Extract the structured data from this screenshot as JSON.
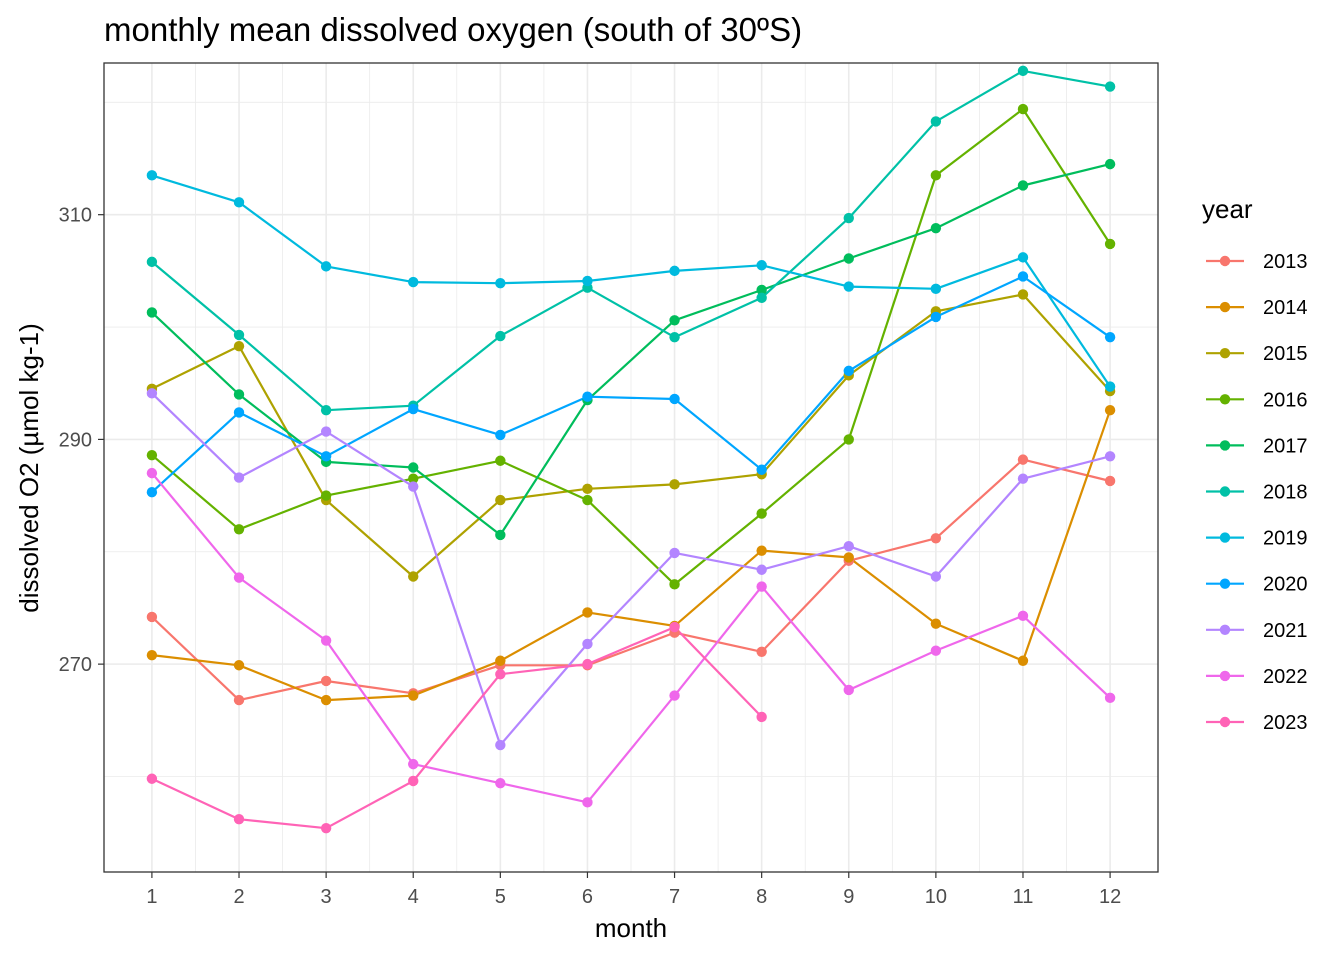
{
  "chart_data": {
    "type": "line",
    "title": "monthly mean dissolved oxygen (south of 30ºS)",
    "xlabel": "month",
    "ylabel": "dissolved O2 (µmol kg-1)",
    "legend_title": "year",
    "legend_position": "right",
    "x": [
      1,
      2,
      3,
      4,
      5,
      6,
      7,
      8,
      9,
      10,
      11,
      12
    ],
    "x_ticks": [
      "1",
      "2",
      "3",
      "4",
      "5",
      "6",
      "7",
      "8",
      "9",
      "10",
      "11",
      "12"
    ],
    "y_ticks": [
      "270",
      "290",
      "310"
    ],
    "xlim": [
      0.45,
      12.55
    ],
    "ylim": [
      251.5,
      323.5
    ],
    "series": [
      {
        "name": "2013",
        "color": "#F8766D",
        "values": [
          274.2,
          266.8,
          268.5,
          267.4,
          269.9,
          269.9,
          272.8,
          271.1,
          279.2,
          281.2,
          288.2,
          286.3
        ]
      },
      {
        "name": "2014",
        "color": "#DB8E00",
        "values": [
          270.8,
          269.9,
          266.8,
          267.2,
          270.3,
          274.6,
          273.4,
          280.1,
          279.5,
          273.6,
          270.3,
          292.6
        ]
      },
      {
        "name": "2015",
        "color": "#AEA200",
        "values": [
          294.5,
          298.3,
          284.6,
          277.8,
          284.6,
          285.6,
          286.0,
          286.9,
          295.7,
          301.4,
          302.9,
          294.3
        ]
      },
      {
        "name": "2016",
        "color": "#64B200",
        "values": [
          288.6,
          282.0,
          285.0,
          286.5,
          288.1,
          284.6,
          277.1,
          283.4,
          290.0,
          313.5,
          319.4,
          307.4
        ]
      },
      {
        "name": "2017",
        "color": "#00BD5C",
        "values": [
          301.3,
          294.0,
          288.0,
          287.5,
          281.5,
          293.5,
          300.6,
          303.3,
          306.1,
          308.8,
          312.6,
          314.5
        ]
      },
      {
        "name": "2018",
        "color": "#00C1A7",
        "values": [
          305.8,
          299.3,
          292.6,
          293.0,
          299.2,
          303.5,
          299.1,
          302.6,
          309.7,
          318.3,
          322.8,
          321.4
        ]
      },
      {
        "name": "2019",
        "color": "#00BADE",
        "values": [
          313.5,
          311.1,
          305.4,
          304.0,
          303.9,
          304.1,
          305.0,
          305.5,
          303.6,
          303.4,
          306.2,
          294.7
        ]
      },
      {
        "name": "2020",
        "color": "#00A6FF",
        "values": [
          285.3,
          292.4,
          288.5,
          292.7,
          290.4,
          293.8,
          293.6,
          287.3,
          296.1,
          300.9,
          304.5,
          299.1
        ]
      },
      {
        "name": "2021",
        "color": "#B385FF",
        "values": [
          294.1,
          286.6,
          290.7,
          285.8,
          262.8,
          271.8,
          279.9,
          278.4,
          280.5,
          277.8,
          286.5,
          288.5
        ]
      },
      {
        "name": "2022",
        "color": "#EF67EB",
        "values": [
          287.0,
          277.7,
          272.1,
          261.1,
          259.4,
          257.7,
          267.2,
          276.9,
          267.7,
          271.2,
          274.3,
          267.0
        ]
      },
      {
        "name": "2023",
        "color": "#FF63B6",
        "values": [
          259.8,
          256.2,
          255.4,
          259.6,
          269.1,
          270.0,
          273.3,
          265.3,
          null,
          null,
          null,
          null
        ]
      }
    ]
  }
}
